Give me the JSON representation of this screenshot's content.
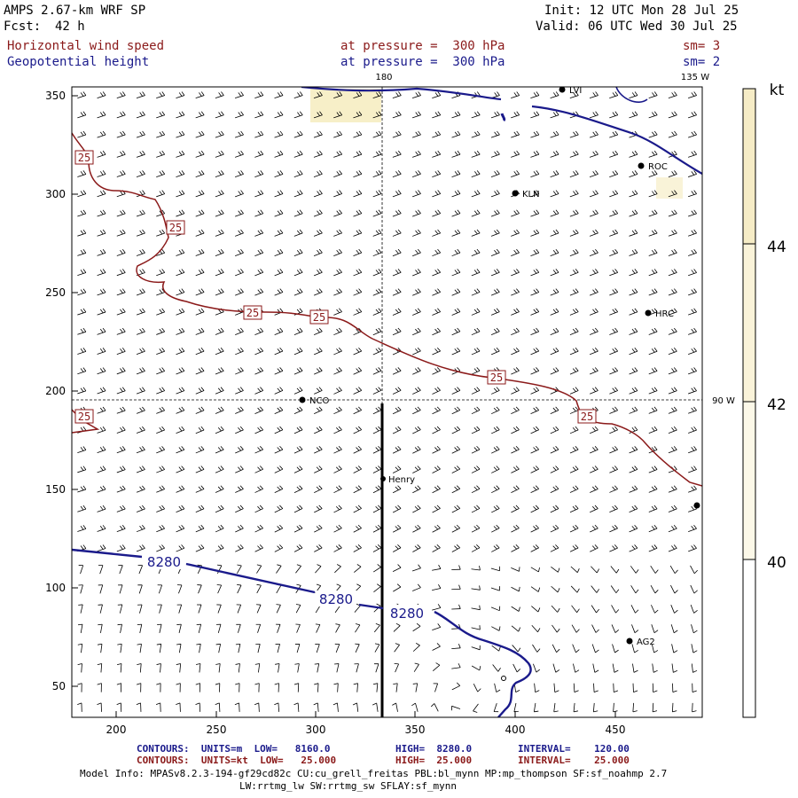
{
  "header": {
    "model": "AMPS 2.67-km WRF SP",
    "fcst_label": "Fcst:",
    "fcst_value": "42 h",
    "init": "Init: 12 UTC Mon 28 Jul 25",
    "valid": "Valid: 06 UTC Wed 30 Jul 25",
    "field1": "Horizontal wind speed",
    "field1_level": "at pressure =  300 hPa",
    "field1_sm": "sm= 3",
    "field2": "Geopotential height",
    "field2_level": "at pressure =  300 hPa",
    "field2_sm": "sm= 2"
  },
  "map": {
    "x_ticks": [
      "200",
      "250",
      "300",
      "350",
      "400",
      "450"
    ],
    "y_ticks": [
      "350",
      "300",
      "250",
      "200",
      "150",
      "100",
      "50"
    ],
    "meridian_labels": {
      "top_180": "180",
      "top_135w": "135 W",
      "right_90w": "90 W"
    },
    "stations": [
      {
        "name": "KLN"
      },
      {
        "name": "ROC"
      },
      {
        "name": "HRC"
      },
      {
        "name": "NCO"
      },
      {
        "name": "Henry"
      },
      {
        "name": "AG2"
      },
      {
        "name": "LVI"
      }
    ],
    "height_contour_labels": [
      "8280",
      "8280",
      "8280"
    ],
    "speed_contour_labels": [
      "25",
      "25",
      "25",
      "25",
      "25",
      "25",
      "25",
      "25"
    ],
    "colors": {
      "height": "#1a1a8b",
      "speed": "#8b1a1a",
      "shade": "#f7efc8"
    }
  },
  "colorbar": {
    "unit": "kt",
    "labels": [
      "44",
      "42",
      "40"
    ]
  },
  "footer": {
    "h_label": "CONTOURS:  UNITS=m  LOW=   8160.0",
    "h_high": "HIGH=  8280.0",
    "h_int": "INTERVAL=    120.00",
    "s_label": "CONTOURS:  UNITS=kt  LOW=   25.000",
    "s_high": "HIGH=  25.000",
    "s_int": "INTERVAL=    25.000",
    "info1": "Model Info: MPASv8.2.3-194-gf29cd82c CU:cu_grell_freitas PBL:bl_mynn MP:mp_thompson SF:sf_noahmp 2.7",
    "info2": "LW:rrtmg_lw SW:rrtmg_sw SFLAY:sf_mynn"
  }
}
